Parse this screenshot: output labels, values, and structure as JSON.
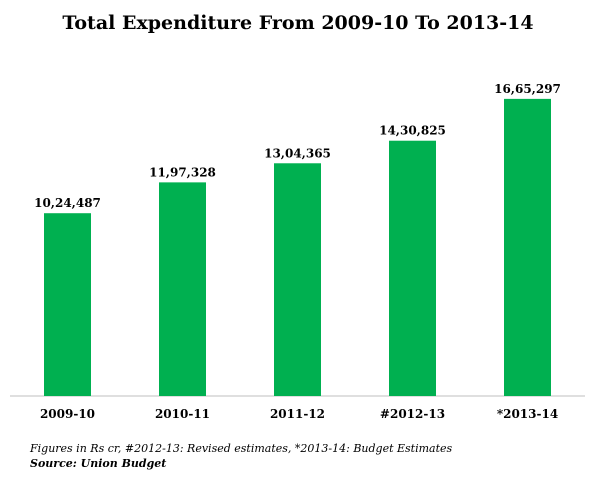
{
  "chart_data": {
    "type": "bar",
    "title": "Total Expenditure From 2009-10 To 2013-14",
    "categories": [
      "2009-10",
      "2010-11",
      "2011-12",
      "#2012-13",
      "*2013-14"
    ],
    "values": [
      1024487,
      1197328,
      1304365,
      1430825,
      1665297
    ],
    "value_labels": [
      "10,24,487",
      "11,97,328",
      "13,04,365",
      "14,30,825",
      "16,65,297"
    ],
    "xlabel": "",
    "ylabel": "",
    "ylim": [
      0,
      1900000
    ],
    "grid": false,
    "bar_color": "#00b050"
  },
  "footnote": "Figures in Rs cr, #2012-13: Revised estimates, *2013-14: Budget Estimates",
  "source": "Source: Union Budget"
}
